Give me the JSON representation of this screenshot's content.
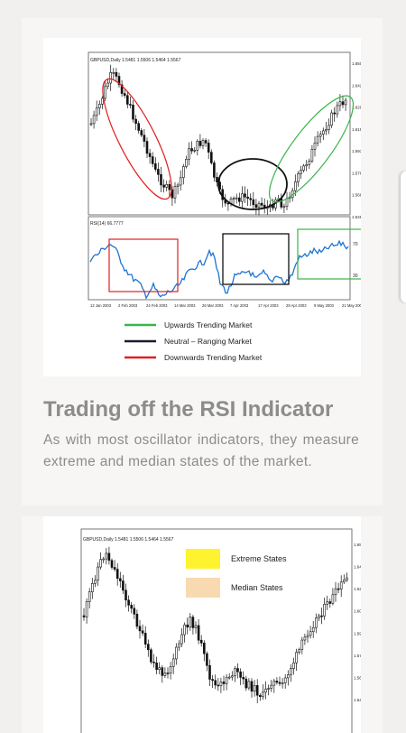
{
  "article": {
    "section": {
      "heading": "Trading off the RSI Indicator",
      "body": "As with most oscillator indicators, they measure extreme and median states of the market."
    }
  },
  "figure1": {
    "price_header": "GBPUSD,Daily 1.5481 1.5506 1.5464 1.5567",
    "rsi_header": "RSI(14) 66.7777",
    "price_ticks": [
      "1.6505",
      "1.6420",
      "1.6295",
      "1.6195",
      "1.5930",
      "1.5765",
      "1.5680",
      "1.5480"
    ],
    "rsi_ticks": [
      "70",
      "30"
    ],
    "date_ticks": [
      "12 Jan 2003",
      "2 Feb 2003",
      "24 Feb 2003",
      "14 Mar 2003",
      "26 Mar 2003",
      "7 Apr 2003",
      "17 Apr 2003",
      "29 Apr 2003",
      "9 May 2003",
      "21 May 2003"
    ],
    "legend": [
      {
        "label": "Upwards Trending Market",
        "color": "#39b54a"
      },
      {
        "label": "Neutral – Ranging Market",
        "color": "#1a1a2e"
      },
      {
        "label": "Downwards Trending Market",
        "color": "#e02020"
      }
    ],
    "colors": {
      "ellipse_down": "#e02020",
      "ellipse_range": "#111111",
      "ellipse_up": "#39b54a",
      "rsi_line": "#1f74d0"
    }
  },
  "figure2": {
    "price_header": "GBPUSD,Daily 1.5481 1.5506 1.5464 1.5567",
    "price_ticks": [
      "1.6505",
      "1.6420",
      "1.6250",
      "1.6095",
      "1.5930",
      "1.5765",
      "1.5600",
      "1.5480"
    ],
    "legend": [
      {
        "label": "Extreme States",
        "color": "#fff22e"
      },
      {
        "label": "Median States",
        "color": "#f9d9b0"
      }
    ]
  }
}
